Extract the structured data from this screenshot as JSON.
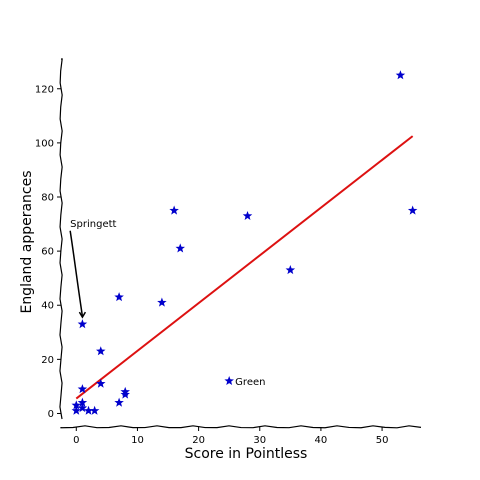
{
  "chart_data": {
    "type": "scatter",
    "title": "",
    "xlabel": "Score in Pointless",
    "ylabel": "England apperances",
    "xlim": [
      -2.5,
      58
    ],
    "ylim": [
      -5,
      131
    ],
    "xticks": [
      0,
      10,
      20,
      30,
      40,
      50
    ],
    "yticks": [
      0,
      20,
      40,
      60,
      80,
      100,
      120
    ],
    "grid": false,
    "legend": "none",
    "points": [
      {
        "x": 53,
        "y": 125
      },
      {
        "x": 55,
        "y": 75
      },
      {
        "x": 16,
        "y": 75
      },
      {
        "x": 28,
        "y": 73
      },
      {
        "x": 17,
        "y": 61
      },
      {
        "x": 35,
        "y": 53
      },
      {
        "x": 7,
        "y": 43
      },
      {
        "x": 14,
        "y": 41
      },
      {
        "x": 1,
        "y": 33
      },
      {
        "x": 4,
        "y": 23
      },
      {
        "x": 25,
        "y": 12
      },
      {
        "x": 4,
        "y": 11
      },
      {
        "x": 1,
        "y": 9
      },
      {
        "x": 8,
        "y": 8
      },
      {
        "x": 8,
        "y": 7
      },
      {
        "x": 1,
        "y": 4
      },
      {
        "x": 7,
        "y": 4
      },
      {
        "x": 0,
        "y": 3
      },
      {
        "x": 1,
        "y": 2
      },
      {
        "x": 0,
        "y": 1
      },
      {
        "x": 2,
        "y": 1
      },
      {
        "x": 3,
        "y": 1
      }
    ],
    "trend_line": {
      "x": [
        0,
        55
      ],
      "y": [
        5.5,
        102.5
      ],
      "color": "#dd1111"
    },
    "marker": "star",
    "marker_color": "#0000cc",
    "annotations": [
      {
        "text": "Springett",
        "point": {
          "x": 1,
          "y": 33
        },
        "label_at": {
          "x": -1,
          "y": 69
        }
      },
      {
        "text": "Green",
        "point": {
          "x": 25,
          "y": 12
        }
      }
    ]
  }
}
